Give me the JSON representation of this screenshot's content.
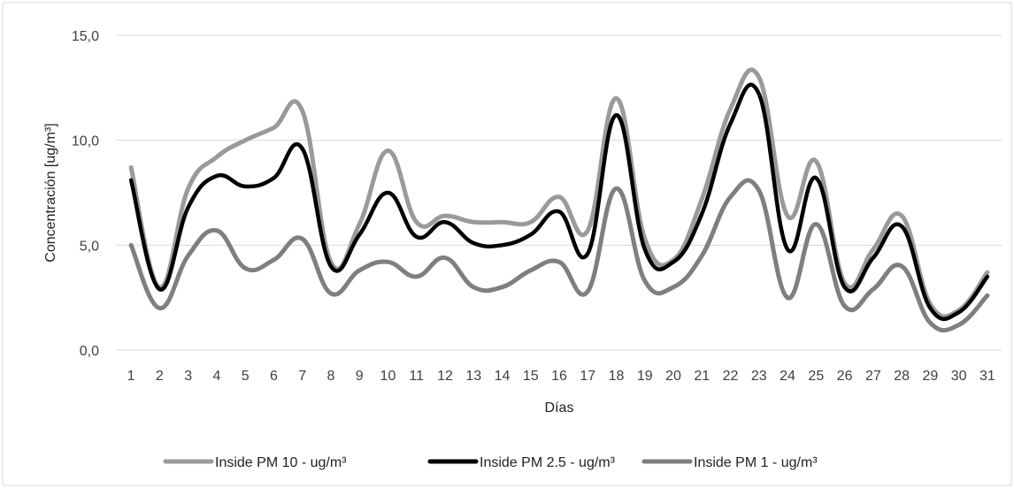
{
  "chart_data": {
    "type": "line",
    "title": "",
    "xlabel": "Días",
    "ylabel": "Concentración [ug/m³]",
    "categories": [
      "1",
      "2",
      "3",
      "4",
      "5",
      "6",
      "7",
      "8",
      "9",
      "10",
      "11",
      "12",
      "13",
      "14",
      "15",
      "16",
      "17",
      "18",
      "19",
      "20",
      "21",
      "22",
      "23",
      "24",
      "25",
      "26",
      "27",
      "28",
      "29",
      "30",
      "31"
    ],
    "ylim": [
      0,
      15
    ],
    "yticks": [
      0,
      5,
      10,
      15
    ],
    "ytick_labels": [
      "0,0",
      "5,0",
      "10,0",
      "15,0"
    ],
    "grid": true,
    "legend_position": "bottom",
    "series": [
      {
        "name": "Inside PM 10 - ug/m³",
        "color": "#9a9a9a",
        "values": [
          8.7,
          3.0,
          7.7,
          9.2,
          10.0,
          10.6,
          11.4,
          4.2,
          6.0,
          9.5,
          6.1,
          6.4,
          6.1,
          6.1,
          6.1,
          7.3,
          5.7,
          12.0,
          5.3,
          4.3,
          7.2,
          11.5,
          13.0,
          6.4,
          9.0,
          3.2,
          4.8,
          6.4,
          2.2,
          1.9,
          3.7
        ]
      },
      {
        "name": "Inside PM 2.5 - ug/m³",
        "color": "#000000",
        "values": [
          8.1,
          2.9,
          6.8,
          8.3,
          7.8,
          8.2,
          9.6,
          4.0,
          5.5,
          7.5,
          5.4,
          6.1,
          5.1,
          5.0,
          5.5,
          6.6,
          4.6,
          11.2,
          4.8,
          4.2,
          6.5,
          10.8,
          12.2,
          4.8,
          8.2,
          3.0,
          4.4,
          5.9,
          2.0,
          1.8,
          3.5
        ]
      },
      {
        "name": "Inside PM 1 - ug/m³",
        "color": "#7f7f7f",
        "values": [
          5.0,
          2.0,
          4.5,
          5.7,
          3.9,
          4.3,
          5.3,
          2.7,
          3.8,
          4.2,
          3.5,
          4.4,
          3.0,
          3.0,
          3.8,
          4.2,
          2.8,
          7.7,
          3.3,
          3.0,
          4.5,
          7.3,
          7.6,
          2.5,
          6.0,
          2.1,
          2.9,
          4.0,
          1.3,
          1.2,
          2.6
        ]
      }
    ]
  }
}
